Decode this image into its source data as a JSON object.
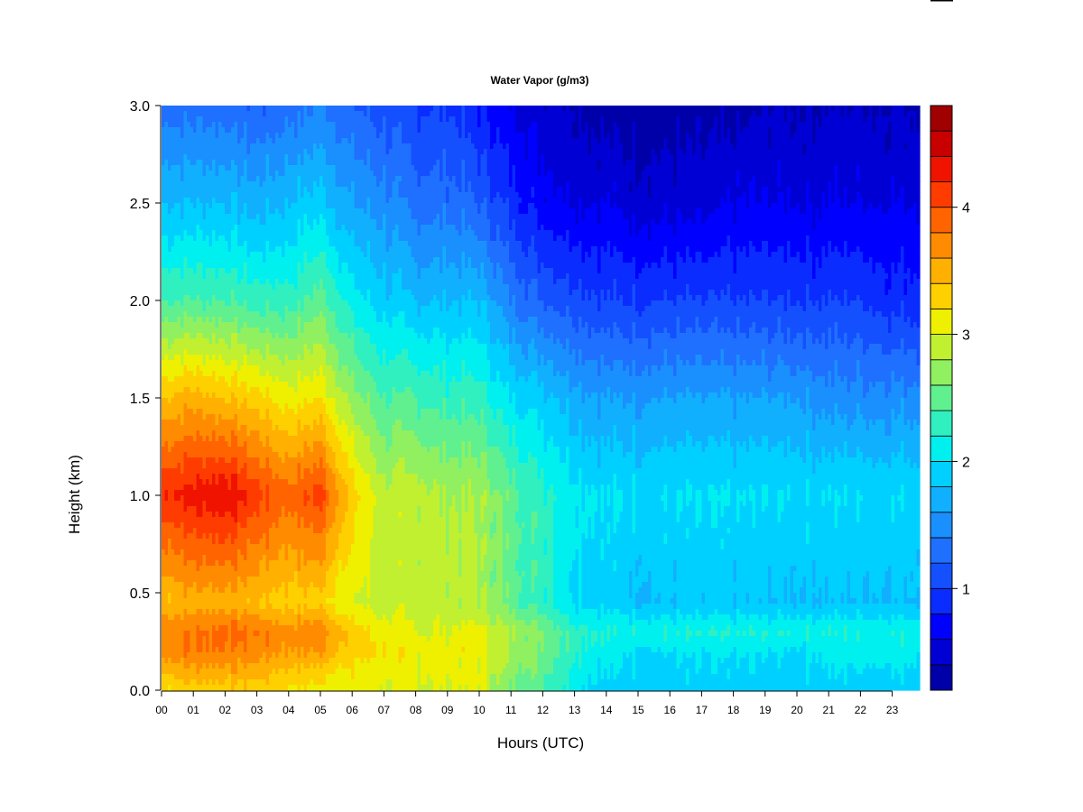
{
  "chart_data": {
    "type": "heatmap",
    "title": "Water Vapor (g/m3)",
    "xlabel": "Hours (UTC)",
    "ylabel": "Height (km)",
    "xlim": [
      0,
      23.9
    ],
    "ylim": [
      0,
      3.0
    ],
    "x_tick_labels": [
      "00",
      "01",
      "02",
      "03",
      "04",
      "05",
      "06",
      "07",
      "08",
      "09",
      "10",
      "11",
      "12",
      "13",
      "14",
      "15",
      "16",
      "17",
      "18",
      "19",
      "20",
      "21",
      "22",
      "23"
    ],
    "y_tick_labels": [
      "0.0",
      "0.5",
      "1.0",
      "1.5",
      "2.0",
      "2.5",
      "3.0"
    ],
    "colorbar": {
      "range": [
        0.2,
        4.8
      ],
      "tick_values": [
        1,
        2,
        3,
        4
      ],
      "tick_labels": [
        "1",
        "2",
        "3",
        "4"
      ],
      "levels": [
        0.2,
        0.4,
        0.6,
        0.8,
        1.0,
        1.2,
        1.4,
        1.6,
        1.8,
        2.0,
        2.2,
        2.4,
        2.6,
        2.8,
        3.0,
        3.2,
        3.4,
        3.6,
        3.8,
        4.0,
        4.2,
        4.4,
        4.6,
        4.8
      ],
      "colors": [
        "#00007a",
        "#0000a8",
        "#0000d4",
        "#0000ff",
        "#0a2cff",
        "#1550ff",
        "#1f70ff",
        "#1a90ff",
        "#10b0ff",
        "#00d0ff",
        "#00f0f0",
        "#30f0c0",
        "#60f090",
        "#90f060",
        "#c0f030",
        "#eef000",
        "#ffd000",
        "#ffb000",
        "#ff8c00",
        "#ff6400",
        "#ff3c00",
        "#f01400",
        "#c80000",
        "#a00000",
        "#800000"
      ]
    },
    "profiles": [
      {
        "hour": 0,
        "heights": [
          0,
          0.2,
          0.3,
          0.45,
          1.0,
          1.5,
          2.0,
          2.5,
          3.0
        ],
        "values": [
          3.2,
          3.7,
          3.8,
          3.4,
          4.2,
          3.4,
          2.4,
          1.8,
          1.3
        ]
      },
      {
        "hour": 1,
        "heights": [
          0,
          0.2,
          0.3,
          0.45,
          1.0,
          1.5,
          2.0,
          2.5,
          3.0
        ],
        "values": [
          3.3,
          3.8,
          3.8,
          3.5,
          4.3,
          3.5,
          2.4,
          1.8,
          1.3
        ]
      },
      {
        "hour": 2,
        "heights": [
          0,
          0.2,
          0.3,
          0.45,
          1.0,
          1.5,
          2.0,
          2.5,
          3.0
        ],
        "values": [
          3.3,
          3.8,
          3.9,
          3.5,
          4.4,
          3.4,
          2.4,
          1.8,
          1.3
        ]
      },
      {
        "hour": 3,
        "heights": [
          0,
          0.2,
          0.3,
          0.45,
          1.0,
          1.5,
          2.0,
          2.5,
          3.0
        ],
        "values": [
          3.3,
          3.7,
          3.8,
          3.4,
          4.1,
          3.3,
          2.3,
          1.7,
          1.2
        ]
      },
      {
        "hour": 4,
        "heights": [
          0,
          0.2,
          0.3,
          0.45,
          1.0,
          1.5,
          2.0,
          2.5,
          3.0
        ],
        "values": [
          3.2,
          3.6,
          3.7,
          3.3,
          3.9,
          3.1,
          2.3,
          1.8,
          1.3
        ]
      },
      {
        "hour": 5,
        "heights": [
          0,
          0.2,
          0.3,
          0.45,
          1.0,
          1.5,
          2.0,
          2.5,
          3.0
        ],
        "values": [
          3.1,
          3.6,
          3.8,
          3.3,
          4.1,
          3.2,
          2.5,
          1.9,
          1.4
        ]
      },
      {
        "hour": 6,
        "heights": [
          0,
          0.2,
          0.3,
          0.45,
          1.0,
          1.5,
          2.0,
          2.5,
          3.0
        ],
        "values": [
          3.0,
          3.3,
          3.3,
          3.0,
          3.3,
          2.7,
          2.1,
          1.6,
          1.2
        ]
      },
      {
        "hour": 7,
        "heights": [
          0,
          0.2,
          0.3,
          0.45,
          1.0,
          1.5,
          2.0,
          2.5,
          3.0
        ],
        "values": [
          3.0,
          3.2,
          3.1,
          2.9,
          2.9,
          2.4,
          1.9,
          1.5,
          1.1
        ]
      },
      {
        "hour": 8,
        "heights": [
          0,
          0.2,
          0.3,
          0.45,
          1.0,
          1.5,
          2.0,
          2.5,
          3.0
        ],
        "values": [
          3.0,
          3.1,
          3.0,
          2.9,
          2.9,
          2.4,
          1.8,
          1.3,
          1.0
        ]
      },
      {
        "hour": 9,
        "heights": [
          0,
          0.2,
          0.3,
          0.45,
          1.0,
          1.5,
          2.0,
          2.5,
          3.0
        ],
        "values": [
          3.0,
          3.1,
          3.0,
          2.9,
          2.8,
          2.3,
          1.8,
          1.3,
          1.0
        ]
      },
      {
        "hour": 10,
        "heights": [
          0,
          0.2,
          0.3,
          0.45,
          1.0,
          1.5,
          2.0,
          2.5,
          3.0
        ],
        "values": [
          3.0,
          3.1,
          3.1,
          2.8,
          2.8,
          2.3,
          1.8,
          1.2,
          0.8
        ]
      },
      {
        "hour": 11,
        "heights": [
          0,
          0.2,
          0.3,
          0.45,
          1.0,
          1.5,
          2.0,
          2.5,
          3.0
        ],
        "values": [
          2.6,
          2.8,
          2.8,
          2.5,
          2.5,
          2.0,
          1.4,
          0.9,
          0.6
        ]
      },
      {
        "hour": 12,
        "heights": [
          0,
          0.2,
          0.3,
          0.45,
          1.0,
          1.5,
          2.0,
          2.5,
          3.0
        ],
        "values": [
          2.4,
          2.6,
          2.6,
          2.3,
          2.3,
          1.9,
          1.2,
          0.7,
          0.5
        ]
      },
      {
        "hour": 13,
        "heights": [
          0,
          0.2,
          0.3,
          0.45,
          1.0,
          1.5,
          2.0,
          2.5,
          3.0
        ],
        "values": [
          2.1,
          2.3,
          2.3,
          2.0,
          2.1,
          1.7,
          1.1,
          0.6,
          0.4
        ]
      },
      {
        "hour": 14,
        "heights": [
          0,
          0.2,
          0.3,
          0.45,
          1.0,
          1.5,
          2.0,
          2.5,
          3.0
        ],
        "values": [
          1.9,
          2.1,
          2.2,
          1.9,
          2.0,
          1.6,
          1.0,
          0.6,
          0.3
        ]
      },
      {
        "hour": 15,
        "heights": [
          0,
          0.2,
          0.3,
          0.45,
          1.0,
          1.5,
          2.0,
          2.5,
          3.0
        ],
        "values": [
          1.9,
          2.0,
          2.2,
          1.8,
          2.0,
          1.6,
          1.0,
          0.5,
          0.3
        ]
      },
      {
        "hour": 16,
        "heights": [
          0,
          0.2,
          0.3,
          0.45,
          1.0,
          1.5,
          2.0,
          2.5,
          3.0
        ],
        "values": [
          1.9,
          2.0,
          2.2,
          1.8,
          2.0,
          1.6,
          1.0,
          0.5,
          0.3
        ]
      },
      {
        "hour": 17,
        "heights": [
          0,
          0.2,
          0.3,
          0.45,
          1.0,
          1.5,
          2.0,
          2.5,
          3.0
        ],
        "values": [
          1.9,
          2.0,
          2.2,
          1.8,
          2.0,
          1.6,
          1.0,
          0.5,
          0.3
        ]
      },
      {
        "hour": 18,
        "heights": [
          0,
          0.2,
          0.3,
          0.45,
          1.0,
          1.5,
          2.0,
          2.5,
          3.0
        ],
        "values": [
          1.9,
          2.0,
          2.2,
          1.8,
          2.0,
          1.6,
          1.0,
          0.6,
          0.3
        ]
      },
      {
        "hour": 19,
        "heights": [
          0,
          0.2,
          0.3,
          0.45,
          1.0,
          1.5,
          2.0,
          2.5,
          3.0
        ],
        "values": [
          1.9,
          2.0,
          2.2,
          1.8,
          2.0,
          1.6,
          1.0,
          0.6,
          0.4
        ]
      },
      {
        "hour": 20,
        "heights": [
          0,
          0.2,
          0.3,
          0.45,
          1.0,
          1.5,
          2.0,
          2.5,
          3.0
        ],
        "values": [
          1.9,
          2.0,
          2.2,
          1.8,
          2.0,
          1.6,
          1.0,
          0.6,
          0.4
        ]
      },
      {
        "hour": 21,
        "heights": [
          0,
          0.2,
          0.3,
          0.45,
          1.0,
          1.5,
          2.0,
          2.5,
          3.0
        ],
        "values": [
          1.9,
          2.1,
          2.2,
          1.8,
          2.0,
          1.5,
          1.0,
          0.6,
          0.4
        ]
      },
      {
        "hour": 22,
        "heights": [
          0,
          0.2,
          0.3,
          0.45,
          1.0,
          1.5,
          2.0,
          2.5,
          3.0
        ],
        "values": [
          1.9,
          2.1,
          2.2,
          1.8,
          2.0,
          1.5,
          1.0,
          0.6,
          0.4
        ]
      },
      {
        "hour": 23,
        "heights": [
          0,
          0.2,
          0.3,
          0.45,
          1.0,
          1.5,
          2.0,
          2.5,
          3.0
        ],
        "values": [
          1.9,
          2.1,
          2.2,
          1.8,
          2.0,
          1.5,
          0.9,
          0.6,
          0.4
        ]
      },
      {
        "hour": 23.9,
        "heights": [
          0,
          0.2,
          0.3,
          0.45,
          1.0,
          1.5,
          2.0,
          2.5,
          3.0
        ],
        "values": [
          1.9,
          2.1,
          2.2,
          1.8,
          2.0,
          1.5,
          0.9,
          0.6,
          0.4
        ]
      }
    ]
  }
}
